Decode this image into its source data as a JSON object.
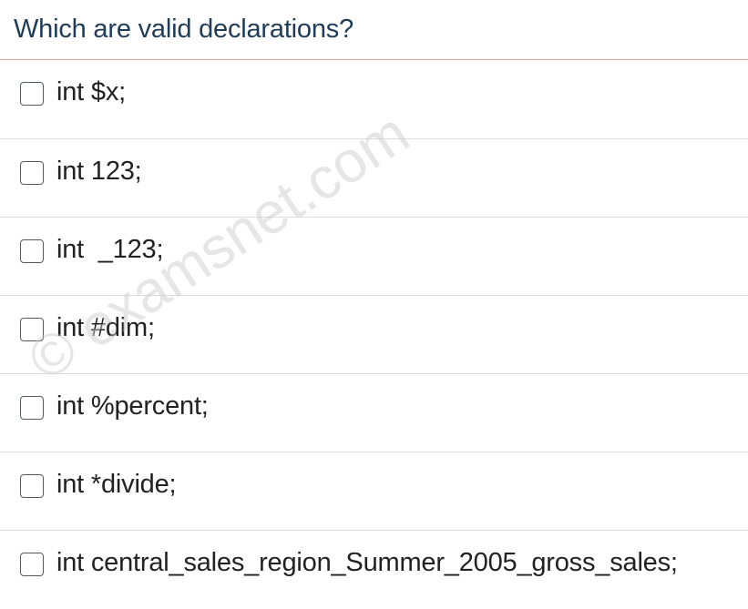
{
  "question": {
    "title": "Which are valid declarations?"
  },
  "options": [
    {
      "label": "int $x;",
      "checked": false
    },
    {
      "label": "int 123;",
      "checked": false
    },
    {
      "label": "int  _123;",
      "checked": false
    },
    {
      "label": "int #dim;",
      "checked": false
    },
    {
      "label": "int %percent;",
      "checked": false
    },
    {
      "label": "int *divide;",
      "checked": false
    },
    {
      "label": "int central_sales_region_Summer_2005_gross_sales;",
      "checked": false
    }
  ],
  "watermark": {
    "text": "© examsnet.com"
  },
  "colors": {
    "title": "#1f3b57",
    "header_border": "#e0a0a0",
    "row_divider": "#dcdcdc",
    "checkbox_border": "#555b63",
    "text": "#222222"
  }
}
